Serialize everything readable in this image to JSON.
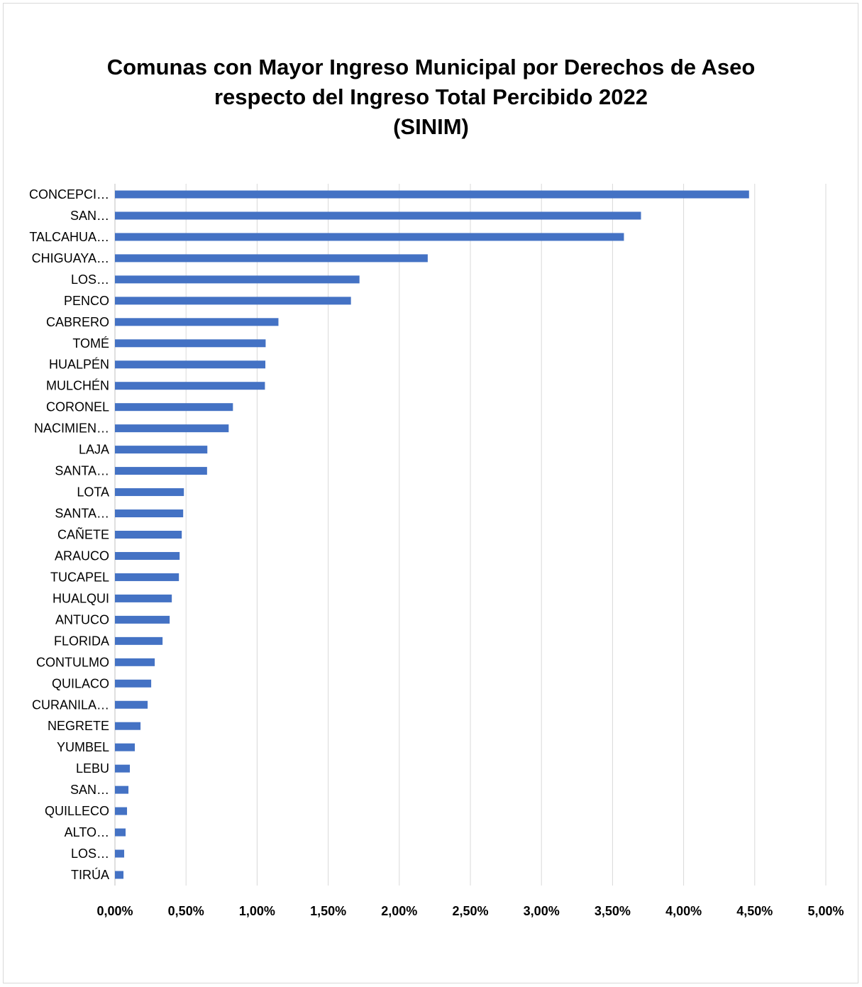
{
  "chart_data": {
    "type": "bar",
    "orientation": "horizontal",
    "title_lines": [
      "Comunas con Mayor Ingreso Municipal por Derechos de Aseo",
      "respecto del Ingreso Total Percibido 2022",
      "(SINIM)"
    ],
    "categories": [
      "CONCEPCI…",
      "SAN…",
      "TALCAHUA…",
      "CHIGUAYA…",
      "LOS…",
      "PENCO",
      "CABRERO",
      "TOMÉ",
      "HUALPÉN",
      "MULCHÉN",
      "CORONEL",
      "NACIMIEN…",
      "LAJA",
      "SANTA…",
      "LOTA",
      "SANTA…",
      "CAÑETE",
      "ARAUCO",
      "TUCAPEL",
      "HUALQUI",
      "ANTUCO",
      "FLORIDA",
      "CONTULMO",
      "QUILACO",
      "CURANILA…",
      "NEGRETE",
      "YUMBEL",
      "LEBU",
      "SAN…",
      "QUILLECO",
      "ALTO…",
      "LOS…",
      "TIRÚA"
    ],
    "values": [
      4.46,
      3.7,
      3.58,
      2.2,
      1.72,
      1.66,
      1.15,
      1.06,
      1.058,
      1.055,
      0.83,
      0.8,
      0.65,
      0.648,
      0.485,
      0.48,
      0.47,
      0.455,
      0.45,
      0.4,
      0.385,
      0.335,
      0.28,
      0.255,
      0.23,
      0.18,
      0.14,
      0.105,
      0.095,
      0.085,
      0.075,
      0.065,
      0.06
    ],
    "unit": "%",
    "xlim": [
      0,
      5
    ],
    "x_ticks": [
      "0,00%",
      "0,50%",
      "1,00%",
      "1,50%",
      "2,00%",
      "2,50%",
      "3,00%",
      "3,50%",
      "4,00%",
      "4,50%",
      "5,00%"
    ],
    "x_tick_values": [
      0,
      0.5,
      1,
      1.5,
      2,
      2.5,
      3,
      3.5,
      4,
      4.5,
      5
    ],
    "grid": true,
    "legend": "none",
    "bar_color": "#4472C4",
    "grid_color": "#d9d9d9"
  }
}
